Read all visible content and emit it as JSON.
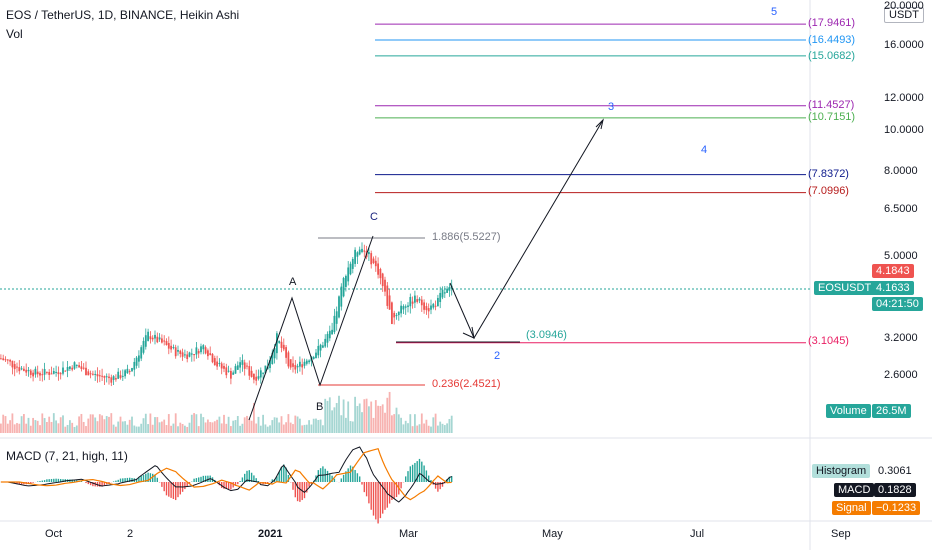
{
  "header": {
    "title": "EOS / TetherUS, 1D, BINANCE, Heikin Ashi",
    "vol_label": "Vol",
    "macd_label": "MACD (7, 21, high, 11)"
  },
  "axis": {
    "currency_button": "USDT",
    "price_ticks": [
      "20.0000",
      "16.0000",
      "12.0000",
      "10.0000",
      "8.0000",
      "6.5000",
      "5.0000",
      "3.2000",
      "2.6000"
    ],
    "time_ticks": [
      "Oct",
      "2",
      "2021",
      "Mar",
      "May",
      "Jul",
      "Sep"
    ]
  },
  "price_tags": {
    "last": {
      "label": "EOSUSDT",
      "value": "4.1633",
      "countdown": "04:21:50"
    },
    "prev": {
      "value": "4.1843"
    }
  },
  "levels": [
    {
      "text": "(17.9461)",
      "color": "#9c27b0"
    },
    {
      "text": "(16.4493)",
      "color": "#2196f3"
    },
    {
      "text": "(15.0682)",
      "color": "#26a69a"
    },
    {
      "text": "(11.4527)",
      "color": "#9c27b0"
    },
    {
      "text": "(10.7151)",
      "color": "#4caf50"
    },
    {
      "text": "(7.8372)",
      "color": "#0d1a8c"
    },
    {
      "text": "(7.0996)",
      "color": "#b71c1c"
    },
    {
      "text": "(3.1045)",
      "color": "#e91e63"
    },
    {
      "text": "(3.0946)",
      "color": "#26a69a"
    }
  ],
  "annotations": {
    "fib_high": "1.886(5.5227)",
    "fib_low": "0.236(2.4521)",
    "waves": [
      "A",
      "B",
      "C",
      "2",
      "3",
      "4",
      "5"
    ]
  },
  "volume_tag": {
    "label": "Volume",
    "value": "26.5M"
  },
  "macd_tags": {
    "histogram": {
      "label": "Histogram",
      "value": "0.3061"
    },
    "macd": {
      "label": "MACD",
      "value": "0.1828"
    },
    "signal": {
      "label": "Signal",
      "value": "−0.1233"
    }
  },
  "chart_data": {
    "type": "candlestick",
    "title": "EOS / TetherUS, 1D, BINANCE, Heikin Ashi",
    "ylim": [
      2.2,
      21
    ],
    "price_series": {
      "name": "EOSUSDT",
      "dates_approx": [
        "2020-09-10",
        "2021-03-24"
      ],
      "x_days": [
        0,
        8,
        16,
        24,
        32,
        40,
        48,
        56,
        64,
        70,
        76,
        80,
        84,
        88,
        94,
        100,
        104,
        110,
        116,
        120,
        126,
        132,
        138,
        144,
        150,
        156,
        160,
        164,
        170,
        174,
        180,
        186,
        190,
        192,
        196
      ],
      "close": [
        2.85,
        2.7,
        2.62,
        2.65,
        2.75,
        2.6,
        2.55,
        2.65,
        3.25,
        3.1,
        2.95,
        2.9,
        2.95,
        3.05,
        2.75,
        2.6,
        2.8,
        2.55,
        2.75,
        3.2,
        2.65,
        2.8,
        3.0,
        3.3,
        4.6,
        5.3,
        5.0,
        4.6,
        3.5,
        3.8,
        3.95,
        3.75,
        3.9,
        4.1,
        4.16
      ]
    },
    "levels": [
      17.9461,
      16.4493,
      15.0682,
      11.4527,
      10.7151,
      7.8372,
      7.0996,
      3.1045,
      3.0946
    ],
    "fib": [
      {
        "ratio": 1.886,
        "value": 5.5227
      },
      {
        "ratio": 0.236,
        "value": 2.4521
      }
    ],
    "volume_last": "26.5M",
    "macd": {
      "histogram": 0.3061,
      "macd": 0.1828,
      "signal": -0.1233
    }
  }
}
